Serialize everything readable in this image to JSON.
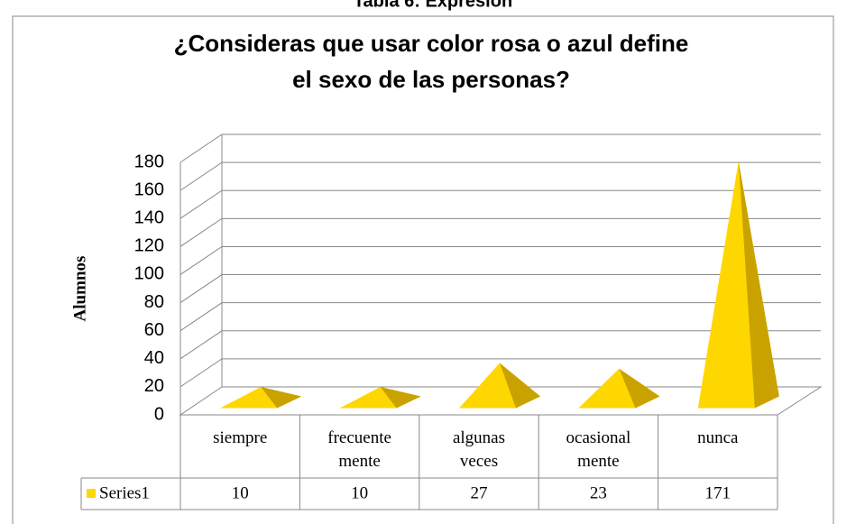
{
  "heading": "Tabla 6: Expresión",
  "chart_data": {
    "type": "pyramid",
    "title": "¿Consideras que usar color rosa o azul define el sexo de las personas?",
    "ylabel": "Alumnos",
    "categories": [
      "siempre",
      "frecuente mente",
      "algunas veces",
      "ocasional mente",
      "nunca"
    ],
    "series": [
      {
        "name": "Series1",
        "color": "#FFD700",
        "values": [
          10,
          10,
          27,
          23,
          171
        ]
      }
    ],
    "ylim": [
      0,
      180
    ],
    "yticks": [
      0,
      20,
      40,
      60,
      80,
      100,
      120,
      140,
      160,
      180
    ],
    "grid": true
  }
}
